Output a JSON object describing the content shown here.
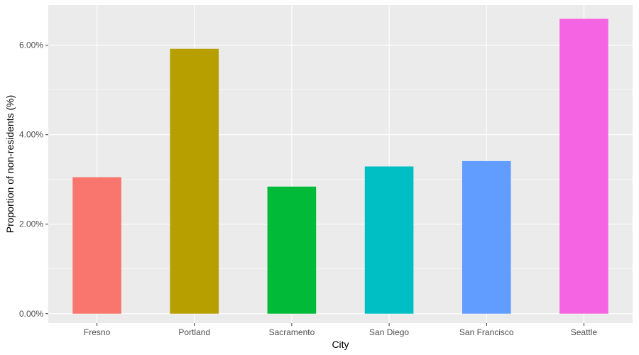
{
  "chart_data": {
    "type": "bar",
    "title": "",
    "xlabel": "City",
    "ylabel": "Proportion of non-residents (%)",
    "categories": [
      "Fresno",
      "Portland",
      "Sacramento",
      "San Diego",
      "San Francisco",
      "Seattle"
    ],
    "values": [
      3.05,
      5.92,
      2.84,
      3.29,
      3.41,
      6.59
    ],
    "colors": [
      "#F8766D",
      "#B79F00",
      "#00BA38",
      "#00BFC4",
      "#619CFF",
      "#F564E3"
    ],
    "y_ticks": [
      0,
      2,
      4,
      6
    ],
    "y_tick_labels": [
      "0.00%",
      "2.00%",
      "4.00%",
      "6.00%"
    ],
    "ylim": [
      -0.21,
      6.9
    ],
    "grid": true,
    "panel_background": "#EBEBEB",
    "legend": "none"
  }
}
